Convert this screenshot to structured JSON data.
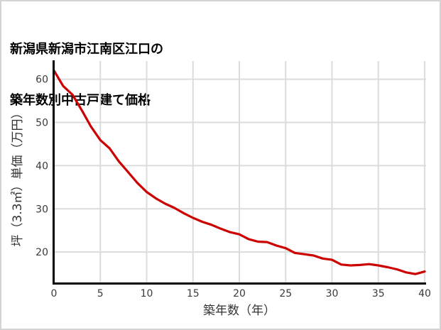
{
  "title": {
    "line1": "新潟県新潟市江南区江口の",
    "line2": "築年数別中古戸建て価格"
  },
  "colors": {
    "line": "#cc0000",
    "grid": "#dcdcdc",
    "axis": "#000000",
    "tick_text": "#3a3a3a",
    "frame_border": "#d4d4d4"
  },
  "chart_data": {
    "type": "line",
    "title": "新潟県新潟市江南区江口の築年数別中古戸建て価格",
    "xlabel": "築年数（年）",
    "ylabel": "坪（3.3㎡）単価（万円）",
    "legend": "none",
    "grid": true,
    "x_ticks": [
      0,
      5,
      10,
      15,
      20,
      25,
      30,
      35,
      40
    ],
    "y_ticks": [
      20,
      30,
      40,
      50,
      60
    ],
    "xlim": [
      0,
      40
    ],
    "ylim": [
      12.8,
      64.2
    ],
    "x": [
      0,
      1,
      2,
      3,
      4,
      5,
      6,
      7,
      8,
      9,
      10,
      11,
      12,
      13,
      14,
      15,
      16,
      17,
      18,
      19,
      20,
      21,
      22,
      23,
      24,
      25,
      26,
      27,
      28,
      29,
      30,
      31,
      32,
      33,
      34,
      35,
      36,
      37,
      38,
      39,
      40
    ],
    "values": [
      62.0,
      58.4,
      56.4,
      52.8,
      49.0,
      45.9,
      44.0,
      41.0,
      38.5,
      36.0,
      33.9,
      32.4,
      31.2,
      30.2,
      29.0,
      27.9,
      27.0,
      26.3,
      25.4,
      24.6,
      24.1,
      23.0,
      22.4,
      22.3,
      21.5,
      20.9,
      19.8,
      19.5,
      19.2,
      18.5,
      18.2,
      17.1,
      16.9,
      17.0,
      17.2,
      16.9,
      16.5,
      16.0,
      15.3,
      14.9,
      15.5
    ]
  }
}
